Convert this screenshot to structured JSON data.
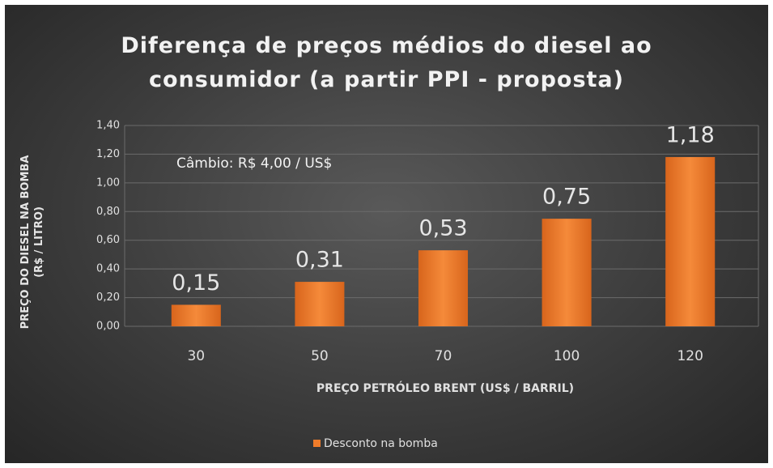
{
  "chart_data": {
    "type": "bar",
    "title": "Diferença de preços médios do diesel ao\nconsumidor (a partir PPI - proposta)",
    "annotation": "Câmbio: R$ 4,00 / US$",
    "x_label": "PREÇO PETRÓLEO BRENT (US$ / BARRIL)",
    "y_label": "PREÇO DO DIESEL NA BOMBA\n(R$ / LITRO)",
    "categories": [
      "30",
      "50",
      "70",
      "100",
      "120"
    ],
    "series": [
      {
        "name": "Desconto na bomba",
        "color": "#f07c2a",
        "values": [
          0.15,
          0.31,
          0.53,
          0.75,
          1.18
        ],
        "value_labels": [
          "0,15",
          "0,31",
          "0,53",
          "0,75",
          "1,18"
        ]
      }
    ],
    "ylim": [
      0,
      1.4
    ],
    "yticks": [
      {
        "value": 0,
        "label": "0,00"
      },
      {
        "value": 0.2,
        "label": "0,20"
      },
      {
        "value": 0.4,
        "label": "0,40"
      },
      {
        "value": 0.6,
        "label": "0,60"
      },
      {
        "value": 0.8,
        "label": "0,80"
      },
      {
        "value": 1.0,
        "label": "1,00"
      },
      {
        "value": 1.2,
        "label": "1,20"
      },
      {
        "value": 1.4,
        "label": "1,40"
      }
    ],
    "grid": true,
    "legend": "bottom"
  }
}
